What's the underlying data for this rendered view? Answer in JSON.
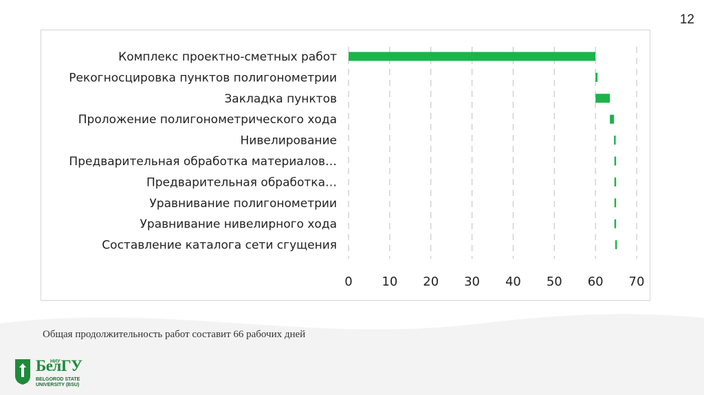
{
  "slide": {
    "number": "12"
  },
  "footnote": "Общая продолжительность работ составит 66 рабочих дней",
  "logo": {
    "name": "БелГУ",
    "small": "НИУ",
    "line1": "BELGOROD STATE",
    "line2": "UNIVERSITY (BSU)"
  },
  "colors": {
    "bar": "#1db34a",
    "grid": "#c8c8c8",
    "text": "#222222"
  },
  "chart_data": {
    "type": "bar",
    "orientation": "horizontal",
    "stacked_offset": true,
    "categories": [
      "Комплекс проектно-сметных работ",
      "Рекогносцировка пунктов полигонометрии",
      "Закладка пунктов",
      "Проложение полигонометрического хода",
      "Нивелирование",
      "Предварительная обработка материалов…",
      "Предварительная обработка…",
      "Уравнивание полигонометрии",
      "Уравнивание нивелирного хода",
      "Составление каталога сети сгущения"
    ],
    "start": [
      0,
      60,
      60,
      63.5,
      64.5,
      64.6,
      64.6,
      64.6,
      64.6,
      64.8
    ],
    "duration": [
      60,
      0.5,
      3.5,
      1,
      0.3,
      0.3,
      0.3,
      0.3,
      0.3,
      0.3
    ],
    "xticks": [
      0,
      10,
      20,
      30,
      40,
      50,
      60,
      70
    ],
    "xlim": [
      0,
      70
    ],
    "grid": "vertical-dashed",
    "title": "",
    "xlabel": "",
    "ylabel": ""
  }
}
